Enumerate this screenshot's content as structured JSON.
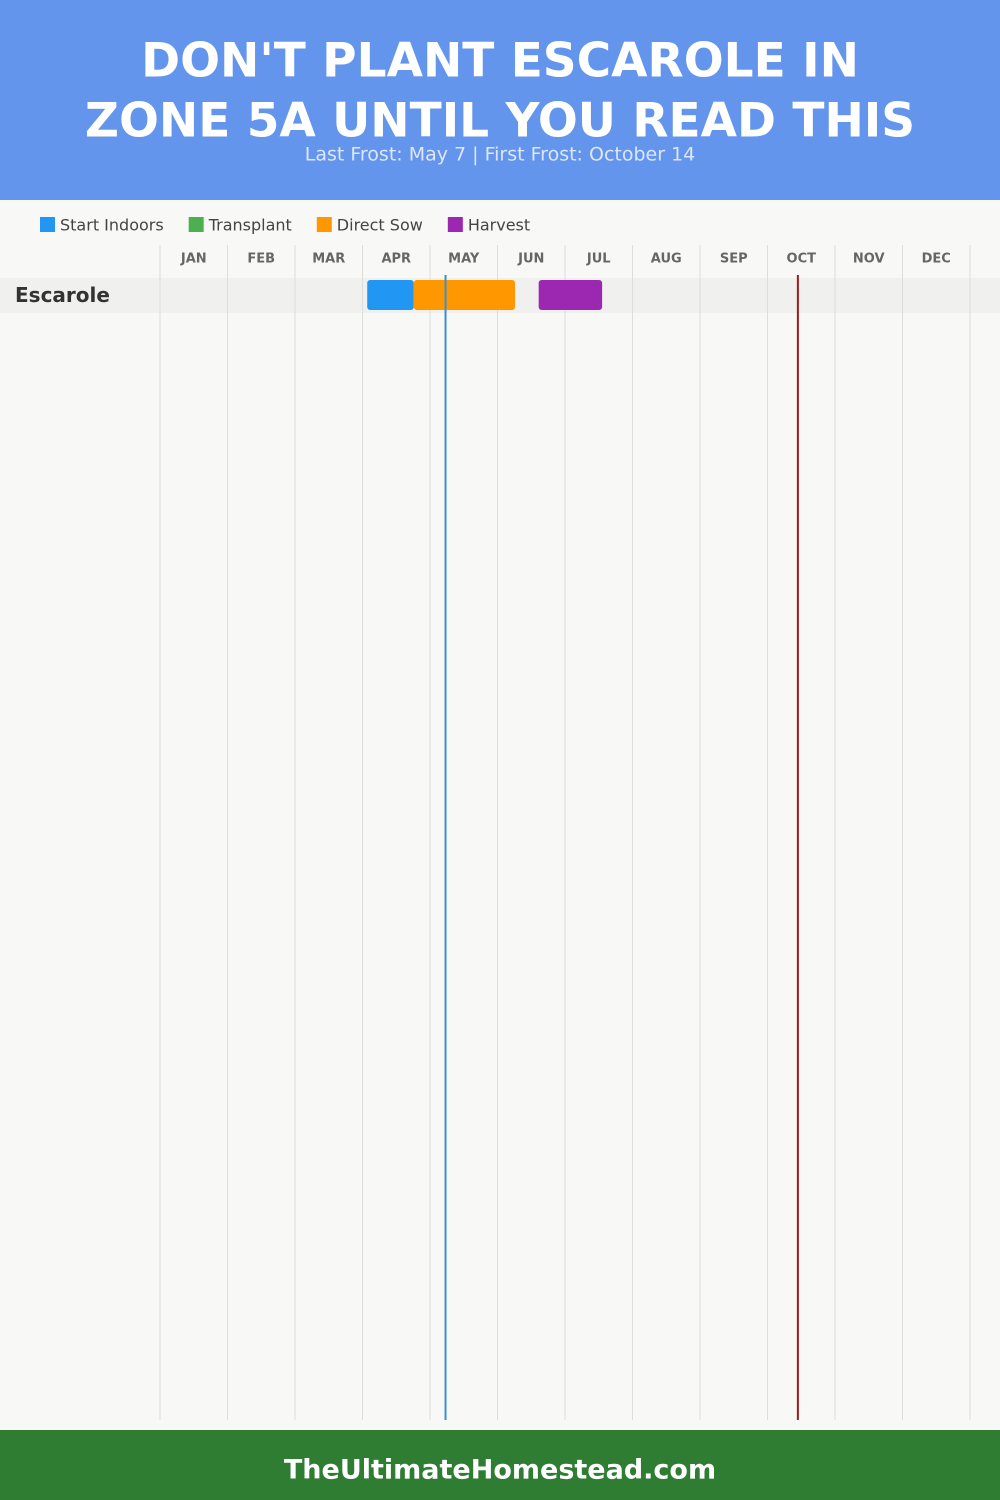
{
  "title": "DON'T PLANT ESCAROLE IN ZONE 5A UNTIL YOU READ THIS",
  "title_lines": [
    "DON'T PLANT ESCAROLE IN",
    "ZONE 5A UNTIL YOU READ THIS"
  ],
  "subtitle": "Last Frost: May 7 | First Frost: October 14",
  "footer": "TheUltimateHomestead.com",
  "chart_data": {
    "type": "gantt",
    "xlim": [
      0,
      12
    ],
    "xticks": [
      0,
      1,
      2,
      3,
      4,
      5,
      6,
      7,
      8,
      9,
      10,
      11,
      12
    ],
    "month_labels": [
      "JAN",
      "FEB",
      "MAR",
      "APR",
      "MAY",
      "JUN",
      "JUL",
      "AUG",
      "SEP",
      "OCT",
      "NOV",
      "DEC"
    ],
    "grid": true,
    "categories": [
      "Escarole"
    ],
    "series": [
      {
        "name": "Start Indoors",
        "color": "#2196f3",
        "values": [
          [
            3.07,
            3.76
          ]
        ]
      },
      {
        "name": "Transplant",
        "color": "#4caf50",
        "values": [
          null
        ]
      },
      {
        "name": "Direct Sow",
        "color": "#ff9800",
        "values": [
          [
            3.76,
            5.26
          ]
        ]
      },
      {
        "name": "Harvest",
        "color": "#9c27b0",
        "values": [
          [
            5.61,
            6.55
          ]
        ]
      }
    ],
    "frost_lines": [
      {
        "value": 4.23,
        "color": "#3a8fd0"
      },
      {
        "value": 9.45,
        "color": "#9b1c1c"
      }
    ]
  }
}
